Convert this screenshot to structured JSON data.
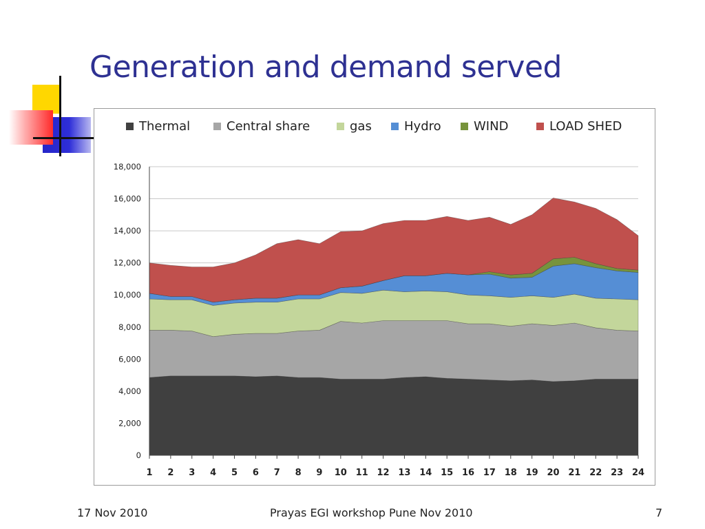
{
  "slide": {
    "title": "Generation and demand served",
    "footer_left": "17 Nov 2010",
    "footer_center": "Prayas EGI workshop Pune Nov 2010",
    "footer_right": "7"
  },
  "colors": {
    "title": "#2e3192",
    "Thermal": "#404040",
    "Central share": "#a6a6a6",
    "gas": "#c3d69b",
    "Hydro": "#558ed5",
    "WIND": "#77933c",
    "LOAD SHED": "#c0504d"
  },
  "chart_data": {
    "type": "area",
    "stacked": true,
    "title": "",
    "xlabel": "",
    "ylabel": "",
    "legend_position": "top",
    "grid": true,
    "ylim": [
      0,
      18000
    ],
    "yticks": [
      0,
      2000,
      4000,
      6000,
      8000,
      10000,
      12000,
      14000,
      16000,
      18000
    ],
    "ytick_labels": [
      "0",
      "2,000",
      "4,000",
      "6,000",
      "8,000",
      "10,000",
      "12,000",
      "14,000",
      "16,000",
      "18,000"
    ],
    "x": [
      "1",
      "2",
      "3",
      "4",
      "5",
      "6",
      "7",
      "8",
      "9",
      "10",
      "11",
      "12",
      "13",
      "14",
      "15",
      "16",
      "17",
      "18",
      "19",
      "20",
      "21",
      "22",
      "23",
      "24"
    ],
    "series": [
      {
        "name": "Thermal",
        "values": [
          4850,
          4950,
          4950,
          4950,
          4950,
          4900,
          4950,
          4850,
          4850,
          4750,
          4750,
          4750,
          4850,
          4900,
          4800,
          4750,
          4700,
          4650,
          4700,
          4600,
          4650,
          4750,
          4750,
          4750
        ]
      },
      {
        "name": "Central share",
        "values": [
          2950,
          2850,
          2800,
          2450,
          2600,
          2700,
          2650,
          2900,
          2950,
          3600,
          3500,
          3650,
          3550,
          3500,
          3600,
          3450,
          3500,
          3400,
          3500,
          3500,
          3600,
          3200,
          3050,
          3000
        ]
      },
      {
        "name": "gas",
        "values": [
          1950,
          1900,
          1950,
          1950,
          1950,
          1950,
          1950,
          2000,
          1950,
          1800,
          1850,
          1900,
          1800,
          1850,
          1800,
          1800,
          1750,
          1800,
          1750,
          1750,
          1800,
          1850,
          1950,
          1950
        ]
      },
      {
        "name": "Hydro",
        "values": [
          350,
          200,
          200,
          200,
          200,
          250,
          250,
          250,
          250,
          300,
          450,
          600,
          1000,
          950,
          1150,
          1250,
          1350,
          1200,
          1150,
          1950,
          1900,
          1900,
          1750,
          1700
        ]
      },
      {
        "name": "WIND",
        "values": [
          0,
          0,
          0,
          0,
          0,
          0,
          0,
          0,
          0,
          0,
          0,
          0,
          0,
          0,
          0,
          0,
          150,
          200,
          250,
          450,
          400,
          250,
          150,
          150
        ]
      },
      {
        "name": "LOAD SHED",
        "values": [
          1900,
          1950,
          1850,
          2200,
          2300,
          2700,
          3400,
          3450,
          3200,
          3500,
          3450,
          3550,
          3450,
          3450,
          3550,
          3400,
          3400,
          3150,
          3650,
          3800,
          3450,
          3450,
          3050,
          2150
        ]
      }
    ]
  }
}
